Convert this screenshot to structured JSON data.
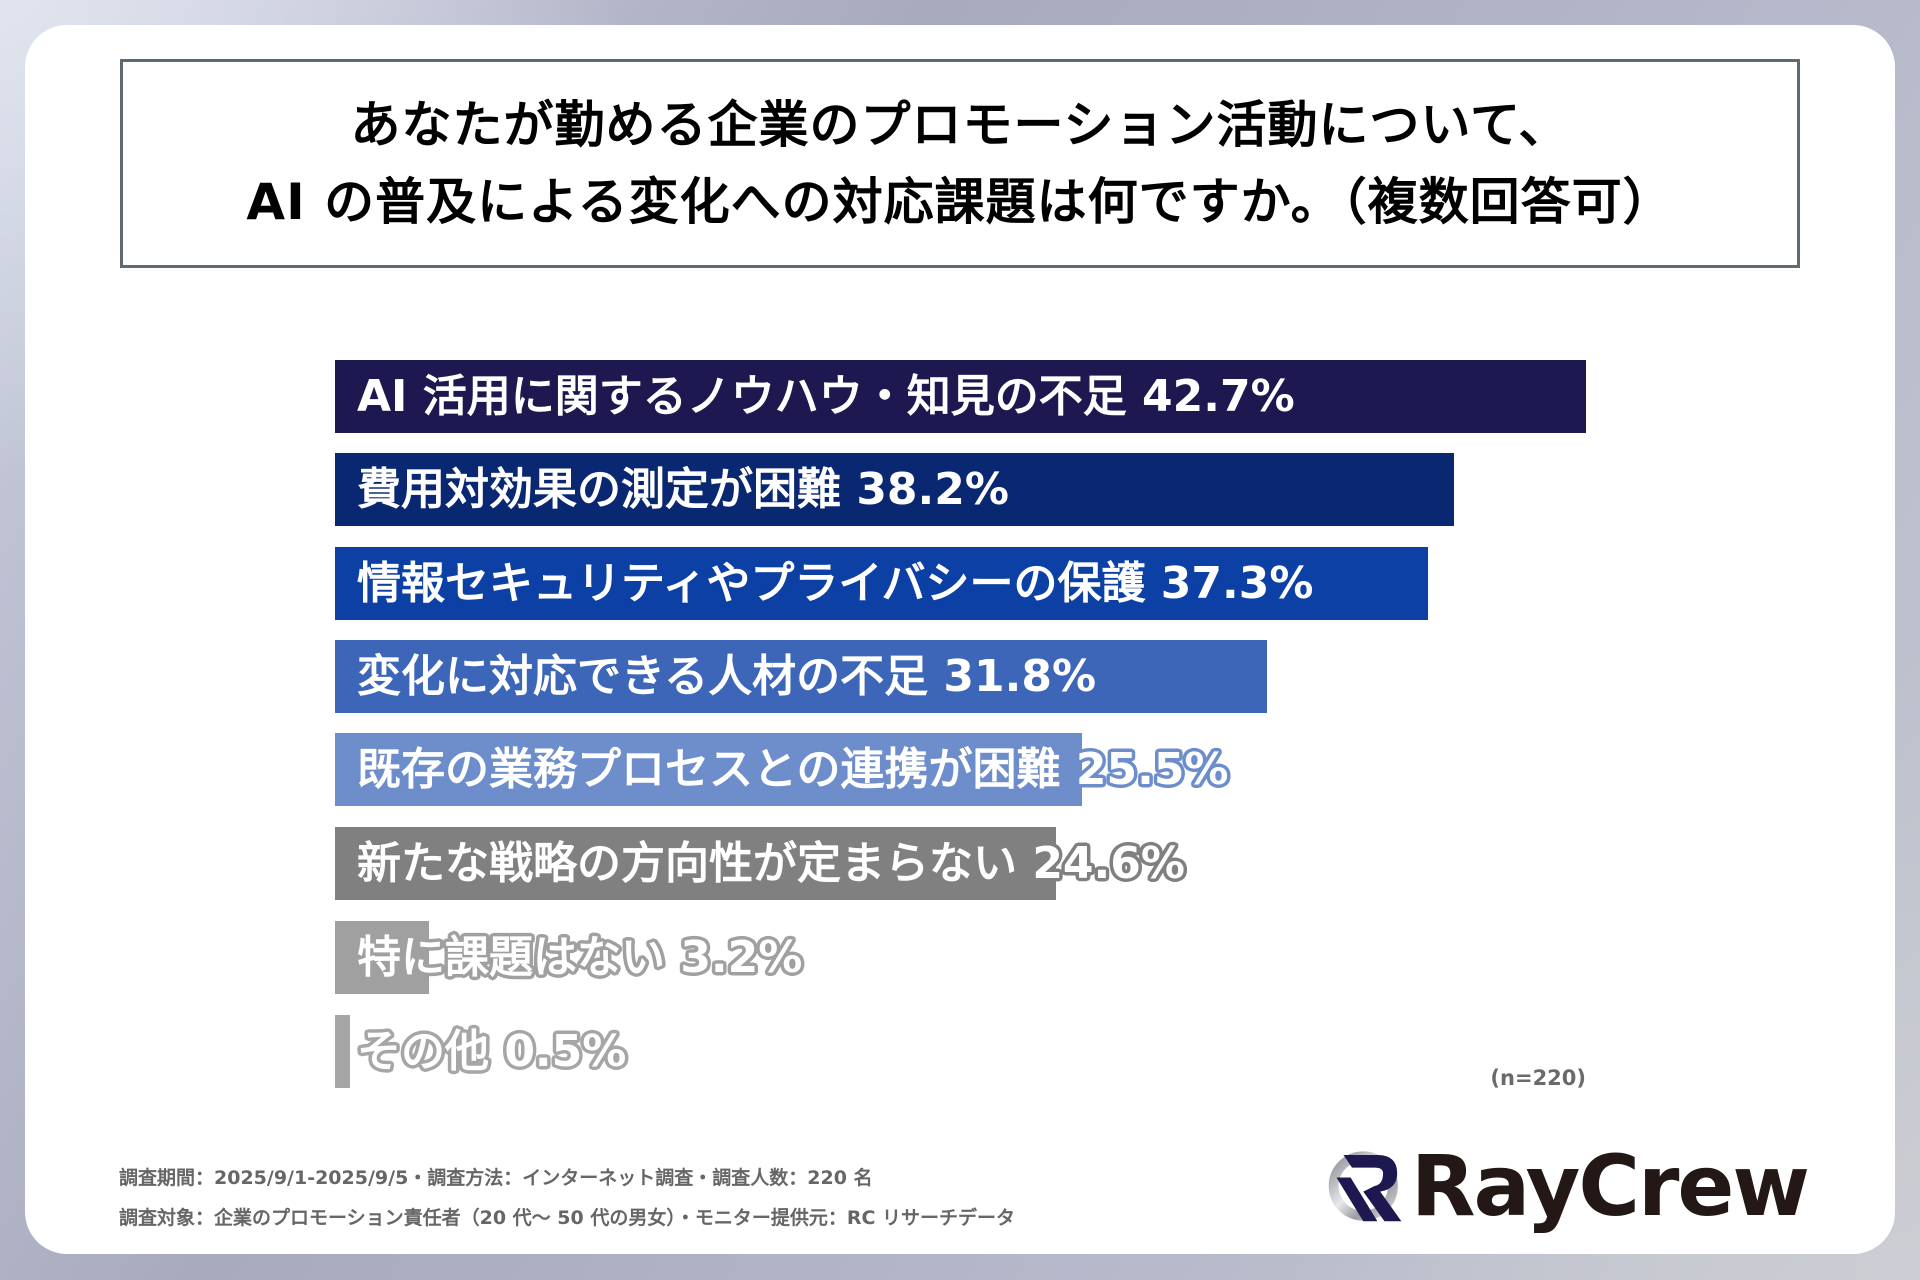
{
  "title": {
    "line1": "あなたが勤める企業のプロモーション活動について、",
    "line2": "AI の普及による変化への対応課題は何ですか。（複数回答可）"
  },
  "bars": [
    {
      "label": "AI 活用に関するノウハウ・知見の不足 42.7%",
      "value": 42.7,
      "color": "#1e1850"
    },
    {
      "label": "費用対効果の測定が困難 38.2%",
      "value": 38.2,
      "color": "#0a2872"
    },
    {
      "label": "情報セキュリティやプライバシーの保護 37.3%",
      "value": 37.3,
      "color": "#0d40a5"
    },
    {
      "label": "変化に対応できる人材の不足 31.8%",
      "value": 31.8,
      "color": "#3d66b8"
    },
    {
      "label": "既存の業務プロセスとの連携が困難 25.5%",
      "value": 25.5,
      "color": "#6d8dcb"
    },
    {
      "label": "新たな戦略の方向性が定まらない 24.6%",
      "value": 24.6,
      "color": "#808080"
    },
    {
      "label": "特に課題はない 3.2%",
      "value": 3.2,
      "color": "#a0a0a0"
    },
    {
      "label": "その他 0.5%",
      "value": 0.5,
      "color": "#a6a6a6"
    }
  ],
  "sample_note": "(n=220)",
  "footer": {
    "line1": "調査期間：2025/9/1-2025/9/5・調査方法：インターネット調査・調査人数：220 名",
    "line2": "調査対象：企業のプロモーション責任者（20 代～ 50 代の男女）・モニター提供元：RC リサーチデータ"
  },
  "logo": {
    "text": "RayCrew",
    "icon": "raycrew-logo-icon"
  },
  "chart_data": {
    "type": "bar",
    "orientation": "horizontal",
    "title": "あなたが勤める企業のプロモーション活動について、AI の普及による変化への対応課題は何ですか。（複数回答可）",
    "categories": [
      "AI 活用に関するノウハウ・知見の不足",
      "費用対効果の測定が困難",
      "情報セキュリティやプライバシーの保護",
      "変化に対応できる人材の不足",
      "既存の業務プロセスとの連携が困難",
      "新たな戦略の方向性が定まらない",
      "特に課題はない",
      "その他"
    ],
    "values": [
      42.7,
      38.2,
      37.3,
      31.8,
      25.5,
      24.6,
      3.2,
      0.5
    ],
    "unit": "%",
    "xlabel": "",
    "ylabel": "",
    "grid": false,
    "legend": "none",
    "annotations": [
      "(n=220)"
    ],
    "colors": [
      "#1e1850",
      "#0a2872",
      "#0d40a5",
      "#3d66b8",
      "#6d8dcb",
      "#808080",
      "#a0a0a0",
      "#a6a6a6"
    ]
  }
}
